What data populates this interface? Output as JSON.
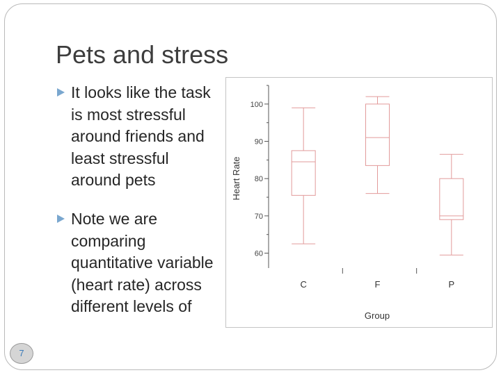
{
  "slide": {
    "title": "Pets and stress",
    "bullets": [
      "It looks like the task is most stressful around friends and least stressful around pets",
      "Note we are comparing quantitative variable (heart rate) across different levels of"
    ],
    "page_number": "7",
    "bullet_color": "#7aa7cf"
  },
  "chart_data": {
    "type": "boxplot",
    "xlabel": "Group",
    "ylabel": "Heart Rate",
    "categories": [
      "C",
      "F",
      "P"
    ],
    "y_ticks": [
      60,
      70,
      80,
      90,
      100
    ],
    "ylim": [
      56,
      105
    ],
    "grid": false,
    "color": "#e29a9a",
    "boxes": [
      {
        "category": "C",
        "min": 62.5,
        "q1": 75.5,
        "median": 84.5,
        "q3": 87.5,
        "max": 99
      },
      {
        "category": "F",
        "min": 76,
        "q1": 83.5,
        "median": 91,
        "q3": 100,
        "max": 102
      },
      {
        "category": "P",
        "min": 59.5,
        "q1": 69,
        "median": 70,
        "q3": 80,
        "max": 86.5
      }
    ]
  }
}
